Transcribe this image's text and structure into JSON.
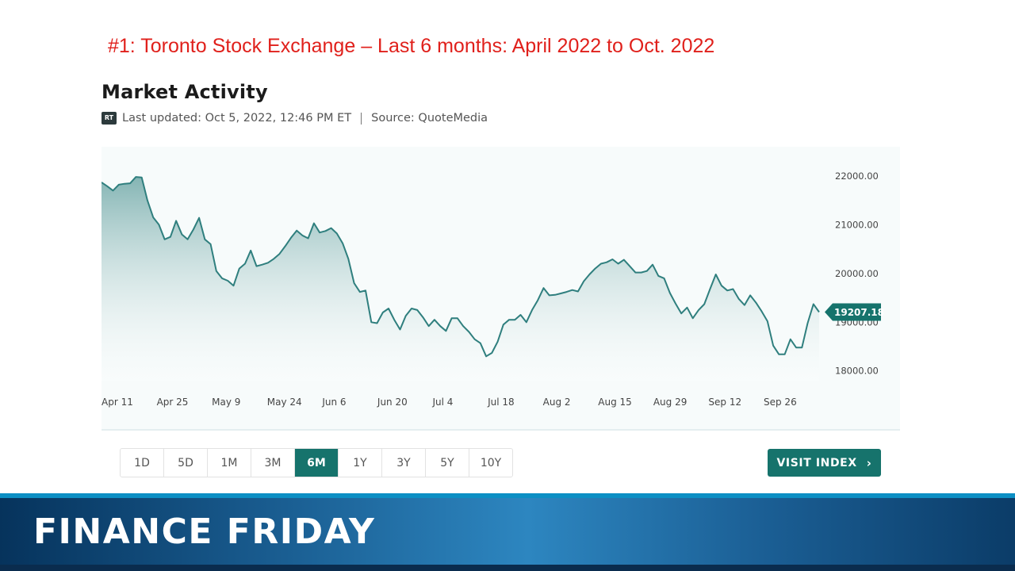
{
  "slide": {
    "title": "#1:  Toronto Stock Exchange – Last 6 months: April 2022 to Oct. 2022"
  },
  "widget": {
    "heading": "Market Activity",
    "badge": "RT",
    "last_updated": "Last updated: Oct 5, 2022, 12:46 PM ET",
    "source": "Source: QuoteMedia"
  },
  "range_buttons": {
    "items": [
      {
        "label": "1D"
      },
      {
        "label": "5D"
      },
      {
        "label": "1M"
      },
      {
        "label": "3M"
      },
      {
        "label": "6M"
      },
      {
        "label": "1Y"
      },
      {
        "label": "3Y"
      },
      {
        "label": "5Y"
      },
      {
        "label": "10Y"
      }
    ],
    "active": "6M"
  },
  "visit_button": {
    "label": "VISIT INDEX",
    "icon": "chevron-right-icon"
  },
  "banner": {
    "text": "FINANCE FRIDAY"
  },
  "colors": {
    "accent": "#16736c",
    "line": "#2f7f7e",
    "title_red": "#e0201b"
  },
  "chart_data": {
    "type": "area",
    "xlabels": [
      "Apr 11",
      "Apr 25",
      "May 9",
      "May 24",
      "Jun 6",
      "Jun 20",
      "Jul 4",
      "Jul 18",
      "Aug 2",
      "Aug 15",
      "Aug 29",
      "Sep 12",
      "Sep 26"
    ],
    "yticks": [
      "22000.00",
      "21000.00",
      "20000.00",
      "19000.00",
      "18000.00"
    ],
    "ylim": [
      17800,
      22600
    ],
    "last_value": "19207.18",
    "series": [
      {
        "values": [
          21870,
          21790,
          21700,
          21820,
          21840,
          21850,
          21980,
          21970,
          21500,
          21150,
          21000,
          20700,
          20750,
          21080,
          20800,
          20700,
          20900,
          21140,
          20700,
          20600,
          20050,
          19900,
          19850,
          19750,
          20100,
          20200,
          20470,
          20150,
          20180,
          20220,
          20300,
          20400,
          20560,
          20730,
          20880,
          20780,
          20720,
          21030,
          20840,
          20870,
          20930,
          20820,
          20620,
          20300,
          19800,
          19620,
          19650,
          19000,
          18980,
          19200,
          19280,
          19050,
          18850,
          19130,
          19280,
          19250,
          19100,
          18920,
          19050,
          18920,
          18820,
          19080,
          19080,
          18920,
          18800,
          18650,
          18570,
          18300,
          18370,
          18600,
          18950,
          19050,
          19050,
          19150,
          19000,
          19250,
          19450,
          19700,
          19550,
          19560,
          19590,
          19620,
          19660,
          19630,
          19840,
          19980,
          20100,
          20200,
          20230,
          20290,
          20200,
          20280,
          20150,
          20020,
          20020,
          20050,
          20180,
          19950,
          19900,
          19600,
          19380,
          19180,
          19300,
          19080,
          19250,
          19370,
          19680,
          19980,
          19750,
          19650,
          19680,
          19480,
          19350,
          19550,
          19400,
          19220,
          19020,
          18520,
          18340,
          18340,
          18650,
          18480,
          18480,
          18980,
          19370,
          19207.18
        ]
      }
    ]
  }
}
